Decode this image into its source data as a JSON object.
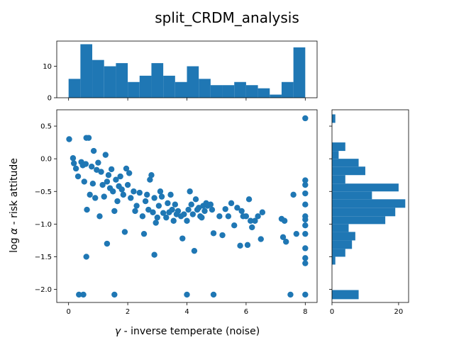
{
  "chart_data": {
    "type": "scatter",
    "title": "split_CRDM_analysis",
    "xlabel_symbol": "γ",
    "xlabel_text": " - inverse temperate (noise)",
    "ylabel_prefix": "log",
    "ylabel_symbol": "α",
    "ylabel_text": " - risk attitude",
    "color": "#1f77b4",
    "main": {
      "xlim": [
        -0.4,
        8.4
      ],
      "ylim": [
        -2.2,
        0.75
      ],
      "xticks": [
        0,
        2,
        4,
        6,
        8
      ],
      "yticks": [
        0.5,
        0.0,
        -0.5,
        -1.0,
        -1.5,
        -2.0
      ],
      "ytick_labels": [
        "0.5",
        "0.0",
        "−0.5",
        "−1.0",
        "−1.5",
        "−2.0"
      ],
      "points": [
        [
          0.02,
          0.3
        ],
        [
          0.15,
          0.01
        ],
        [
          0.18,
          -0.07
        ],
        [
          0.25,
          -0.15
        ],
        [
          0.32,
          -0.27
        ],
        [
          0.43,
          -0.05
        ],
        [
          0.48,
          -0.1
        ],
        [
          0.53,
          -0.35
        ],
        [
          0.58,
          -0.08
        ],
        [
          0.62,
          -0.78
        ],
        [
          0.6,
          0.32
        ],
        [
          0.68,
          0.32
        ],
        [
          0.72,
          -0.55
        ],
        [
          0.78,
          -0.12
        ],
        [
          0.82,
          -0.38
        ],
        [
          0.85,
          0.12
        ],
        [
          0.9,
          -0.6
        ],
        [
          0.95,
          -0.17
        ],
        [
          1.0,
          -0.06
        ],
        [
          1.05,
          -0.88
        ],
        [
          1.1,
          -0.2
        ],
        [
          1.15,
          -0.4
        ],
        [
          1.2,
          -0.58
        ],
        [
          1.25,
          0.06
        ],
        [
          1.3,
          -0.35
        ],
        [
          1.35,
          -0.25
        ],
        [
          1.4,
          -0.45
        ],
        [
          1.45,
          -0.16
        ],
        [
          1.5,
          -0.5
        ],
        [
          1.55,
          -0.8
        ],
        [
          1.6,
          -0.32
        ],
        [
          1.65,
          -0.65
        ],
        [
          1.7,
          -0.42
        ],
        [
          1.75,
          -0.27
        ],
        [
          1.8,
          -0.47
        ],
        [
          1.85,
          -0.55
        ],
        [
          1.9,
          -1.12
        ],
        [
          1.95,
          -0.15
        ],
        [
          2.0,
          -0.4
        ],
        [
          2.05,
          -0.22
        ],
        [
          2.1,
          -0.6
        ],
        [
          2.2,
          -0.5
        ],
        [
          2.25,
          -0.8
        ],
        [
          2.3,
          -0.72
        ],
        [
          2.4,
          -0.52
        ],
        [
          2.5,
          -0.88
        ],
        [
          2.55,
          -1.15
        ],
        [
          2.6,
          -0.65
        ],
        [
          2.65,
          -0.55
        ],
        [
          2.7,
          -0.78
        ],
        [
          2.75,
          -0.32
        ],
        [
          2.8,
          -0.25
        ],
        [
          2.85,
          -0.82
        ],
        [
          2.9,
          -0.6
        ],
        [
          2.95,
          -0.98
        ],
        [
          3.0,
          -0.9
        ],
        [
          3.05,
          -0.72
        ],
        [
          3.1,
          -0.5
        ],
        [
          3.15,
          -0.58
        ],
        [
          3.2,
          -0.83
        ],
        [
          3.3,
          -0.9
        ],
        [
          3.35,
          -0.68
        ],
        [
          3.4,
          -0.82
        ],
        [
          3.45,
          -0.55
        ],
        [
          3.5,
          -0.78
        ],
        [
          3.55,
          -0.95
        ],
        [
          3.6,
          -0.7
        ],
        [
          3.65,
          -0.85
        ],
        [
          3.7,
          -0.8
        ],
        [
          3.8,
          -0.88
        ],
        [
          3.85,
          -1.22
        ],
        [
          3.9,
          -0.85
        ],
        [
          4.0,
          -0.95
        ],
        [
          4.05,
          -0.78
        ],
        [
          4.1,
          -0.5
        ],
        [
          4.15,
          -0.7
        ],
        [
          4.2,
          -0.85
        ],
        [
          4.25,
          -1.41
        ],
        [
          4.3,
          -0.62
        ],
        [
          4.35,
          -0.78
        ],
        [
          4.4,
          -0.75
        ],
        [
          4.45,
          -0.88
        ],
        [
          4.5,
          -0.9
        ],
        [
          4.55,
          -0.72
        ],
        [
          4.6,
          -0.8
        ],
        [
          4.65,
          -0.68
        ],
        [
          4.7,
          -0.72
        ],
        [
          4.8,
          -0.7
        ],
        [
          4.85,
          -0.78
        ],
        [
          4.9,
          -1.14
        ],
        [
          5.1,
          -0.88
        ],
        [
          5.2,
          -1.17
        ],
        [
          5.3,
          -0.77
        ],
        [
          5.4,
          -0.88
        ],
        [
          5.5,
          -0.68
        ],
        [
          5.6,
          -1.02
        ],
        [
          5.7,
          -0.75
        ],
        [
          5.8,
          -1.33
        ],
        [
          5.85,
          -0.8
        ],
        [
          5.9,
          -0.88
        ],
        [
          6.0,
          -0.88
        ],
        [
          6.05,
          -1.32
        ],
        [
          6.1,
          -0.62
        ],
        [
          6.15,
          -0.95
        ],
        [
          6.2,
          -1.05
        ],
        [
          6.3,
          -0.95
        ],
        [
          6.4,
          -0.88
        ],
        [
          6.5,
          -1.23
        ],
        [
          6.55,
          -0.82
        ],
        [
          7.2,
          -0.92
        ],
        [
          7.3,
          -0.95
        ],
        [
          7.35,
          -1.27
        ],
        [
          7.6,
          -0.55
        ],
        [
          7.7,
          -1.15
        ],
        [
          7.25,
          -1.2
        ],
        [
          0.35,
          -2.08
        ],
        [
          0.5,
          -2.08
        ],
        [
          1.55,
          -2.08
        ],
        [
          4.0,
          -2.08
        ],
        [
          4.9,
          -2.08
        ],
        [
          7.5,
          -2.08
        ],
        [
          8.0,
          -2.08
        ],
        [
          0.6,
          -1.5
        ],
        [
          1.3,
          -1.3
        ],
        [
          2.9,
          -1.47
        ],
        [
          8.0,
          0.62
        ],
        [
          8.0,
          -0.33
        ],
        [
          8.0,
          -0.4
        ],
        [
          8.0,
          -0.53
        ],
        [
          8.0,
          -0.7
        ],
        [
          8.0,
          -0.88
        ],
        [
          8.0,
          -0.93
        ],
        [
          8.0,
          -1.02
        ],
        [
          8.0,
          -1.15
        ],
        [
          8.0,
          -1.37
        ],
        [
          8.0,
          -1.52
        ],
        [
          8.0,
          -1.6
        ]
      ]
    },
    "top_hist": {
      "yticks": [
        0,
        10
      ],
      "bin_start": 0.0,
      "bin_width": 0.4,
      "counts": [
        6,
        17,
        12,
        10,
        11,
        5,
        7,
        11,
        7,
        5,
        10,
        6,
        4,
        4,
        5,
        4,
        3,
        1,
        5,
        16
      ]
    },
    "right_hist": {
      "xticks": [
        0,
        20
      ],
      "bins": [
        {
          "y0": 0.55,
          "y1": 0.68,
          "count": 1
        },
        {
          "y0": 0.12,
          "y1": 0.25,
          "count": 4
        },
        {
          "y0": 0.0,
          "y1": 0.12,
          "count": 2
        },
        {
          "y0": -0.12,
          "y1": 0.0,
          "count": 8
        },
        {
          "y0": -0.25,
          "y1": -0.12,
          "count": 10
        },
        {
          "y0": -0.38,
          "y1": -0.25,
          "count": 4
        },
        {
          "y0": -0.5,
          "y1": -0.38,
          "count": 20
        },
        {
          "y0": -0.62,
          "y1": -0.5,
          "count": 12
        },
        {
          "y0": -0.75,
          "y1": -0.62,
          "count": 22
        },
        {
          "y0": -0.88,
          "y1": -0.75,
          "count": 19
        },
        {
          "y0": -1.0,
          "y1": -0.88,
          "count": 16
        },
        {
          "y0": -1.12,
          "y1": -1.0,
          "count": 5
        },
        {
          "y0": -1.25,
          "y1": -1.12,
          "count": 7
        },
        {
          "y0": -1.38,
          "y1": -1.25,
          "count": 6
        },
        {
          "y0": -1.5,
          "y1": -1.38,
          "count": 4
        },
        {
          "y0": -1.62,
          "y1": -1.5,
          "count": 1
        },
        {
          "y0": -2.15,
          "y1": -2.01,
          "count": 8
        }
      ]
    }
  }
}
